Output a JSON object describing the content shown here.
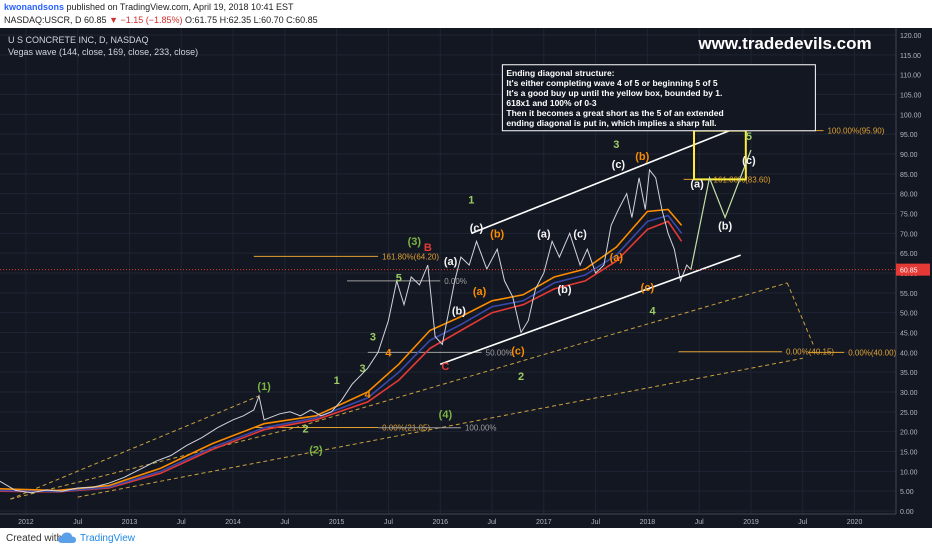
{
  "header": {
    "publisher": "kwonandsons",
    "published_text": "published on TradingView.com, April 19, 2018 10:41 EST",
    "symbol": "NASDAQ:USCR, D",
    "last": "60.85",
    "change": "▼ −1.15 (−1.85%)",
    "ohlc": "O:61.75 H:62.35 L:60.70 C:60.85"
  },
  "footer": {
    "created_with": "Created with",
    "brand": "TradingView"
  },
  "chart_data": {
    "type": "line",
    "title": "U S CONCRETE INC, D, NASDAQ",
    "subtitle": "Vegas wave (144, close, 169, close, 233, close)",
    "watermark": "www.tradedevils.com",
    "ylim": [
      0,
      120
    ],
    "y_ticks": [
      "0.00",
      "5.00",
      "10.00",
      "15.00",
      "20.00",
      "25.00",
      "30.00",
      "35.00",
      "40.00",
      "45.00",
      "50.00",
      "55.00",
      "60.00",
      "65.00",
      "70.00",
      "75.00",
      "80.00",
      "85.00",
      "90.00",
      "95.00",
      "100.00",
      "105.00",
      "110.00",
      "115.00",
      "120.00"
    ],
    "x_ticks": [
      {
        "t": 2012.0,
        "label": "2012"
      },
      {
        "t": 2012.5,
        "label": "Jul"
      },
      {
        "t": 2013.0,
        "label": "2013"
      },
      {
        "t": 2013.5,
        "label": "Jul"
      },
      {
        "t": 2014.0,
        "label": "2014"
      },
      {
        "t": 2014.5,
        "label": "Jul"
      },
      {
        "t": 2015.0,
        "label": "2015"
      },
      {
        "t": 2015.5,
        "label": "Jul"
      },
      {
        "t": 2016.0,
        "label": "2016"
      },
      {
        "t": 2016.5,
        "label": "Jul"
      },
      {
        "t": 2017.0,
        "label": "2017"
      },
      {
        "t": 2017.5,
        "label": "Jul"
      },
      {
        "t": 2018.0,
        "label": "2018"
      },
      {
        "t": 2018.5,
        "label": "Jul"
      },
      {
        "t": 2019.0,
        "label": "2019"
      },
      {
        "t": 2019.5,
        "label": "Jul"
      },
      {
        "t": 2020.0,
        "label": "2020"
      }
    ],
    "last_price": {
      "value": 60.85,
      "label": "60.85"
    },
    "price": [
      [
        2011.75,
        7.5
      ],
      [
        2011.9,
        5.2
      ],
      [
        2012.05,
        4.6
      ],
      [
        2012.2,
        5.3
      ],
      [
        2012.35,
        5.0
      ],
      [
        2012.5,
        5.8
      ],
      [
        2012.65,
        6.0
      ],
      [
        2012.8,
        7.0
      ],
      [
        2012.95,
        8.5
      ],
      [
        2013.1,
        10.5
      ],
      [
        2013.25,
        12.5
      ],
      [
        2013.4,
        14.0
      ],
      [
        2013.55,
        16.5
      ],
      [
        2013.7,
        18.5
      ],
      [
        2013.85,
        21.0
      ],
      [
        2014.0,
        23.0
      ],
      [
        2014.1,
        24.0
      ],
      [
        2014.2,
        25.5
      ],
      [
        2014.25,
        29.0
      ],
      [
        2014.3,
        23.0
      ],
      [
        2014.45,
        24.5
      ],
      [
        2014.55,
        25.0
      ],
      [
        2014.65,
        24.0
      ],
      [
        2014.75,
        25.5
      ],
      [
        2014.85,
        24.0
      ],
      [
        2014.95,
        25.0
      ],
      [
        2015.05,
        28.0
      ],
      [
        2015.15,
        32.0
      ],
      [
        2015.3,
        36.0
      ],
      [
        2015.4,
        40.0
      ],
      [
        2015.5,
        48.0
      ],
      [
        2015.58,
        58.0
      ],
      [
        2015.65,
        52.0
      ],
      [
        2015.72,
        59.0
      ],
      [
        2015.8,
        57.0
      ],
      [
        2015.88,
        62.0
      ],
      [
        2015.92,
        52.0
      ],
      [
        2015.95,
        44.0
      ],
      [
        2016.02,
        42.0
      ],
      [
        2016.08,
        50.0
      ],
      [
        2016.14,
        58.0
      ],
      [
        2016.2,
        64.0
      ],
      [
        2016.28,
        62.0
      ],
      [
        2016.35,
        68.0
      ],
      [
        2016.45,
        61.0
      ],
      [
        2016.55,
        66.0
      ],
      [
        2016.62,
        58.0
      ],
      [
        2016.7,
        54.0
      ],
      [
        2016.78,
        45.0
      ],
      [
        2016.85,
        48.0
      ],
      [
        2016.92,
        56.0
      ],
      [
        2017.0,
        60.0
      ],
      [
        2017.08,
        68.0
      ],
      [
        2017.15,
        64.0
      ],
      [
        2017.25,
        70.0
      ],
      [
        2017.35,
        62.0
      ],
      [
        2017.42,
        66.0
      ],
      [
        2017.5,
        60.0
      ],
      [
        2017.58,
        62.0
      ],
      [
        2017.65,
        72.0
      ],
      [
        2017.72,
        76.0
      ],
      [
        2017.8,
        80.0
      ],
      [
        2017.85,
        74.0
      ],
      [
        2017.92,
        84.0
      ],
      [
        2017.98,
        76.0
      ],
      [
        2018.02,
        86.0
      ],
      [
        2018.08,
        84.0
      ],
      [
        2018.14,
        76.0
      ],
      [
        2018.2,
        70.0
      ],
      [
        2018.26,
        66.0
      ],
      [
        2018.32,
        58.0
      ],
      [
        2018.38,
        62.0
      ],
      [
        2018.42,
        60.85
      ]
    ],
    "series": [
      {
        "name": "",
        "color": "#e53935",
        "points": [
          [
            2011.75,
            5.0
          ],
          [
            2012.3,
            4.8
          ],
          [
            2012.8,
            5.8
          ],
          [
            2013.3,
            9.5
          ],
          [
            2013.8,
            15.5
          ],
          [
            2014.3,
            20.5
          ],
          [
            2014.8,
            23.0
          ],
          [
            2015.3,
            27.5
          ],
          [
            2015.6,
            33.0
          ],
          [
            2015.9,
            41.0
          ],
          [
            2016.2,
            45.5
          ],
          [
            2016.5,
            50.0
          ],
          [
            2016.8,
            52.0
          ],
          [
            2017.1,
            56.0
          ],
          [
            2017.4,
            58.0
          ],
          [
            2017.7,
            63.0
          ],
          [
            2018.0,
            71.0
          ],
          [
            2018.2,
            73.0
          ],
          [
            2018.33,
            68.0
          ]
        ]
      },
      {
        "name": "",
        "color": "#3949ab",
        "points": [
          [
            2011.75,
            5.2
          ],
          [
            2012.3,
            4.9
          ],
          [
            2012.8,
            6.0
          ],
          [
            2013.3,
            10.0
          ],
          [
            2013.8,
            16.0
          ],
          [
            2014.3,
            21.0
          ],
          [
            2014.8,
            23.5
          ],
          [
            2015.3,
            28.5
          ],
          [
            2015.6,
            35.0
          ],
          [
            2015.9,
            43.0
          ],
          [
            2016.2,
            47.0
          ],
          [
            2016.5,
            51.5
          ],
          [
            2016.8,
            53.0
          ],
          [
            2017.1,
            57.5
          ],
          [
            2017.4,
            59.5
          ],
          [
            2017.7,
            64.5
          ],
          [
            2018.0,
            73.0
          ],
          [
            2018.2,
            74.5
          ],
          [
            2018.33,
            70.0
          ]
        ]
      },
      {
        "name": "",
        "color": "#fb8c00",
        "points": [
          [
            2011.75,
            5.6
          ],
          [
            2012.3,
            5.2
          ],
          [
            2012.8,
            6.4
          ],
          [
            2013.3,
            10.8
          ],
          [
            2013.8,
            17.0
          ],
          [
            2014.3,
            22.0
          ],
          [
            2014.8,
            24.0
          ],
          [
            2015.3,
            30.0
          ],
          [
            2015.6,
            37.0
          ],
          [
            2015.9,
            45.5
          ],
          [
            2016.2,
            49.0
          ],
          [
            2016.5,
            53.0
          ],
          [
            2016.8,
            54.5
          ],
          [
            2017.1,
            59.0
          ],
          [
            2017.4,
            61.0
          ],
          [
            2017.7,
            66.5
          ],
          [
            2018.0,
            75.5
          ],
          [
            2018.2,
            76.0
          ],
          [
            2018.33,
            72.0
          ]
        ]
      }
    ],
    "channel": [
      {
        "from": [
          2016.3,
          70.0
        ],
        "to": [
          2018.9,
          97.0
        ],
        "color": "#ffffff"
      },
      {
        "from": [
          2016.0,
          37.0
        ],
        "to": [
          2018.9,
          64.5
        ],
        "color": "#ffffff"
      }
    ],
    "projection": {
      "color": "#c5e1a5",
      "points": [
        [
          2018.42,
          60.85
        ],
        [
          2018.6,
          84.0
        ],
        [
          2018.75,
          74.0
        ],
        [
          2019.0,
          91.0
        ]
      ]
    },
    "dashed_lines": [
      {
        "from": [
          2011.85,
          3.0
        ],
        "to": [
          2014.25,
          29.0
        ],
        "color": "#c8a040"
      },
      {
        "from": [
          2011.85,
          3.0
        ],
        "to": [
          2014.6,
          21.0
        ],
        "color": "#c8a040"
      },
      {
        "from": [
          2014.6,
          21.0
        ],
        "to": [
          2019.35,
          57.5
        ],
        "color": "#c8a040"
      },
      {
        "from": [
          2012.5,
          3.5
        ],
        "to": [
          2019.5,
          38.5
        ],
        "color": "#c8a040"
      },
      {
        "from": [
          2019.35,
          57.5
        ],
        "to": [
          2019.6,
          42.0
        ],
        "color": "#c8a040"
      }
    ],
    "levels": [
      {
        "value": 95.9,
        "x1": 2018.85,
        "x2": 2019.7,
        "label": "100.00%(95.90)",
        "color": "#e0a030"
      },
      {
        "value": 83.6,
        "x1": 2018.35,
        "x2": 2018.6,
        "label": "161.80%(83.60)",
        "color": "#e0a030"
      },
      {
        "value": 64.2,
        "x1": 2014.2,
        "x2": 2015.4,
        "label": "161.80%(64.20)",
        "color": "#e0a030"
      },
      {
        "value": 40.15,
        "x1": 2018.3,
        "x2": 2019.3,
        "label": "0.00%(40.15)",
        "color": "#e0a030"
      },
      {
        "value": 40.0,
        "x1": 2019.55,
        "x2": 2019.9,
        "label": "0.00%(40.00)",
        "color": "#e0a030"
      },
      {
        "value": 21.05,
        "x1": 2014.2,
        "x2": 2015.4,
        "label": "0.00%(21.05)",
        "color": "#e0a030"
      },
      {
        "value": 21.0,
        "x1": 2015.4,
        "x2": 2016.2,
        "label": "100.00%",
        "color": "#9e9e9e"
      },
      {
        "value": 40.0,
        "x1": 2015.3,
        "x2": 2016.4,
        "label": "50.00%",
        "color": "#9e9e9e"
      },
      {
        "value": 58.0,
        "x1": 2015.1,
        "x2": 2016.0,
        "label": "0.00%",
        "color": "#9e9e9e"
      }
    ],
    "box": {
      "x1": 2018.45,
      "x2": 2018.95,
      "y1": 83.6,
      "y2": 95.9,
      "color": "#ffeb3b"
    },
    "wave_labels": [
      {
        "t": 2014.3,
        "v": 30.5,
        "label": "(1)",
        "color": "#7cb342"
      },
      {
        "t": 2014.7,
        "v": 19.8,
        "label": "2",
        "color": "#9ccc65"
      },
      {
        "t": 2014.8,
        "v": 14.5,
        "label": "(2)",
        "color": "#7cb342"
      },
      {
        "t": 2015.0,
        "v": 32.0,
        "label": "1",
        "color": "#9ccc65"
      },
      {
        "t": 2015.25,
        "v": 35.0,
        "label": "3",
        "color": "#9ccc65"
      },
      {
        "t": 2015.3,
        "v": 28.5,
        "label": "4",
        "color": "#fb8c00"
      },
      {
        "t": 2015.35,
        "v": 43.0,
        "label": "3",
        "color": "#9ccc65"
      },
      {
        "t": 2015.5,
        "v": 39.0,
        "label": "4",
        "color": "#fb8c00"
      },
      {
        "t": 2015.6,
        "v": 57.8,
        "label": "5",
        "color": "#9ccc65"
      },
      {
        "t": 2015.75,
        "v": 67.0,
        "label": "(3)",
        "color": "#7cb342"
      },
      {
        "t": 2015.88,
        "v": 65.5,
        "label": "B",
        "color": "#e53935"
      },
      {
        "t": 2016.05,
        "v": 35.5,
        "label": "C",
        "color": "#e53935"
      },
      {
        "t": 2016.05,
        "v": 23.5,
        "label": "(4)",
        "color": "#7cb342"
      },
      {
        "t": 2016.3,
        "v": 77.5,
        "label": "1",
        "color": "#9ccc65"
      },
      {
        "t": 2016.1,
        "v": 62.0,
        "label": "(a)",
        "color": "#f5f5f5"
      },
      {
        "t": 2016.35,
        "v": 70.5,
        "label": "(c)",
        "color": "#f5f5f5"
      },
      {
        "t": 2016.55,
        "v": 69.0,
        "label": "(b)",
        "color": "#fb8c00"
      },
      {
        "t": 2016.38,
        "v": 54.5,
        "label": "(a)",
        "color": "#fb8c00"
      },
      {
        "t": 2016.18,
        "v": 49.5,
        "label": "(b)",
        "color": "#f5f5f5"
      },
      {
        "t": 2016.75,
        "v": 39.5,
        "label": "(c)",
        "color": "#fb8c00"
      },
      {
        "t": 2016.78,
        "v": 33.0,
        "label": "2",
        "color": "#9ccc65"
      },
      {
        "t": 2017.0,
        "v": 69.0,
        "label": "(a)",
        "color": "#f5f5f5"
      },
      {
        "t": 2017.35,
        "v": 69.0,
        "label": "(c)",
        "color": "#f5f5f5"
      },
      {
        "t": 2017.2,
        "v": 55.0,
        "label": "(b)",
        "color": "#f5f5f5"
      },
      {
        "t": 2017.7,
        "v": 63.0,
        "label": "(a)",
        "color": "#fb8c00"
      },
      {
        "t": 2017.7,
        "v": 91.5,
        "label": "3",
        "color": "#9ccc65"
      },
      {
        "t": 2017.72,
        "v": 86.5,
        "label": "(c)",
        "color": "#f5f5f5"
      },
      {
        "t": 2017.95,
        "v": 88.5,
        "label": "(b)",
        "color": "#fb8c00"
      },
      {
        "t": 2018.0,
        "v": 55.5,
        "label": "(c)",
        "color": "#fb8c00"
      },
      {
        "t": 2018.05,
        "v": 49.5,
        "label": "4",
        "color": "#9ccc65"
      },
      {
        "t": 2018.48,
        "v": 81.5,
        "label": "(a)",
        "color": "#f5f5f5"
      },
      {
        "t": 2018.75,
        "v": 71.0,
        "label": "(b)",
        "color": "#f5f5f5"
      },
      {
        "t": 2018.98,
        "v": 99.5,
        "label": "(5)",
        "color": "#7cb342"
      },
      {
        "t": 2018.98,
        "v": 93.5,
        "label": "5",
        "color": "#9ccc65"
      },
      {
        "t": 2018.98,
        "v": 87.5,
        "label": "(c)",
        "color": "#f5f5f5"
      }
    ],
    "annotation": {
      "t": 2016.6,
      "v": 112.5,
      "lines": [
        "Ending diagonal structure:",
        "It's either completing wave 4 of 5 or beginning 5 of 5",
        "It's a good buy up until the yellow box, bounded by 1.",
        "618x1 and 100% of 0-3",
        "Then it becomes a great short as the 5 of an extended",
        "ending diagonal is put in, which implies a sharp fall."
      ]
    }
  }
}
